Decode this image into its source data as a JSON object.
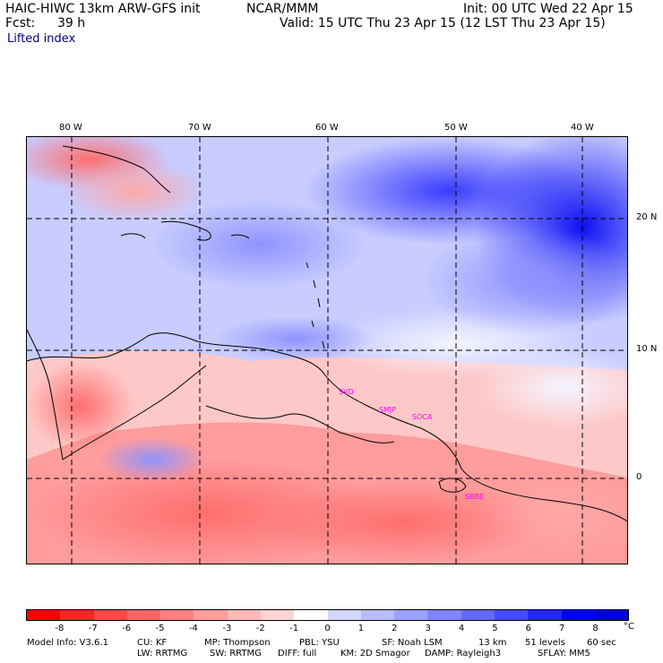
{
  "header": {
    "model_title": "HAIC-HIWC 13km ARW-GFS init",
    "org": "NCAR/MMM",
    "init_text": "Init: 00 UTC Wed 22 Apr 15",
    "fcst_label": "Fcst:",
    "fcst_value": "39 h",
    "valid_text": "Valid: 15 UTC Thu 23 Apr 15 (12 LST Thu 23 Apr 15)",
    "field_name": "Lifted index"
  },
  "map": {
    "lon_labels": [
      "80 W",
      "70 W",
      "60 W",
      "50 W",
      "40 W"
    ],
    "lat_labels": [
      "20 N",
      "10 N",
      "0"
    ],
    "stations": [
      "SVD",
      "SMJP",
      "SOCA",
      "SBBE"
    ]
  },
  "colorbar": {
    "colors": [
      "#ff0000",
      "#ff2424",
      "#ff4848",
      "#ff6464",
      "#ff8080",
      "#ff9c9c",
      "#ffb8b8",
      "#ffd4d4",
      "#ffffff",
      "#d4d8ff",
      "#b8bcff",
      "#9ca0ff",
      "#8084ff",
      "#6468ff",
      "#484cff",
      "#2428ff",
      "#0000ff",
      "#0000e0"
    ],
    "labels": [
      "-8",
      "-7",
      "-6",
      "-5",
      "-4",
      "-3",
      "-2",
      "-1",
      "0",
      "1",
      "2",
      "3",
      "4",
      "5",
      "6",
      "7",
      "8"
    ],
    "unit": "°C"
  },
  "footer": {
    "line1": [
      "Model Info: V3.6.1",
      "CU: KF",
      "MP: Thompson",
      "PBL: YSU",
      "SF: Noah LSM",
      "13 km",
      "51 levels",
      "60 sec"
    ],
    "line2": [
      "LW: RRTMG",
      "SW: RRTMG",
      "DIFF: full",
      "KM: 2D Smagor",
      "DAMP: Rayleigh3",
      "SFLAY: MM5"
    ]
  }
}
